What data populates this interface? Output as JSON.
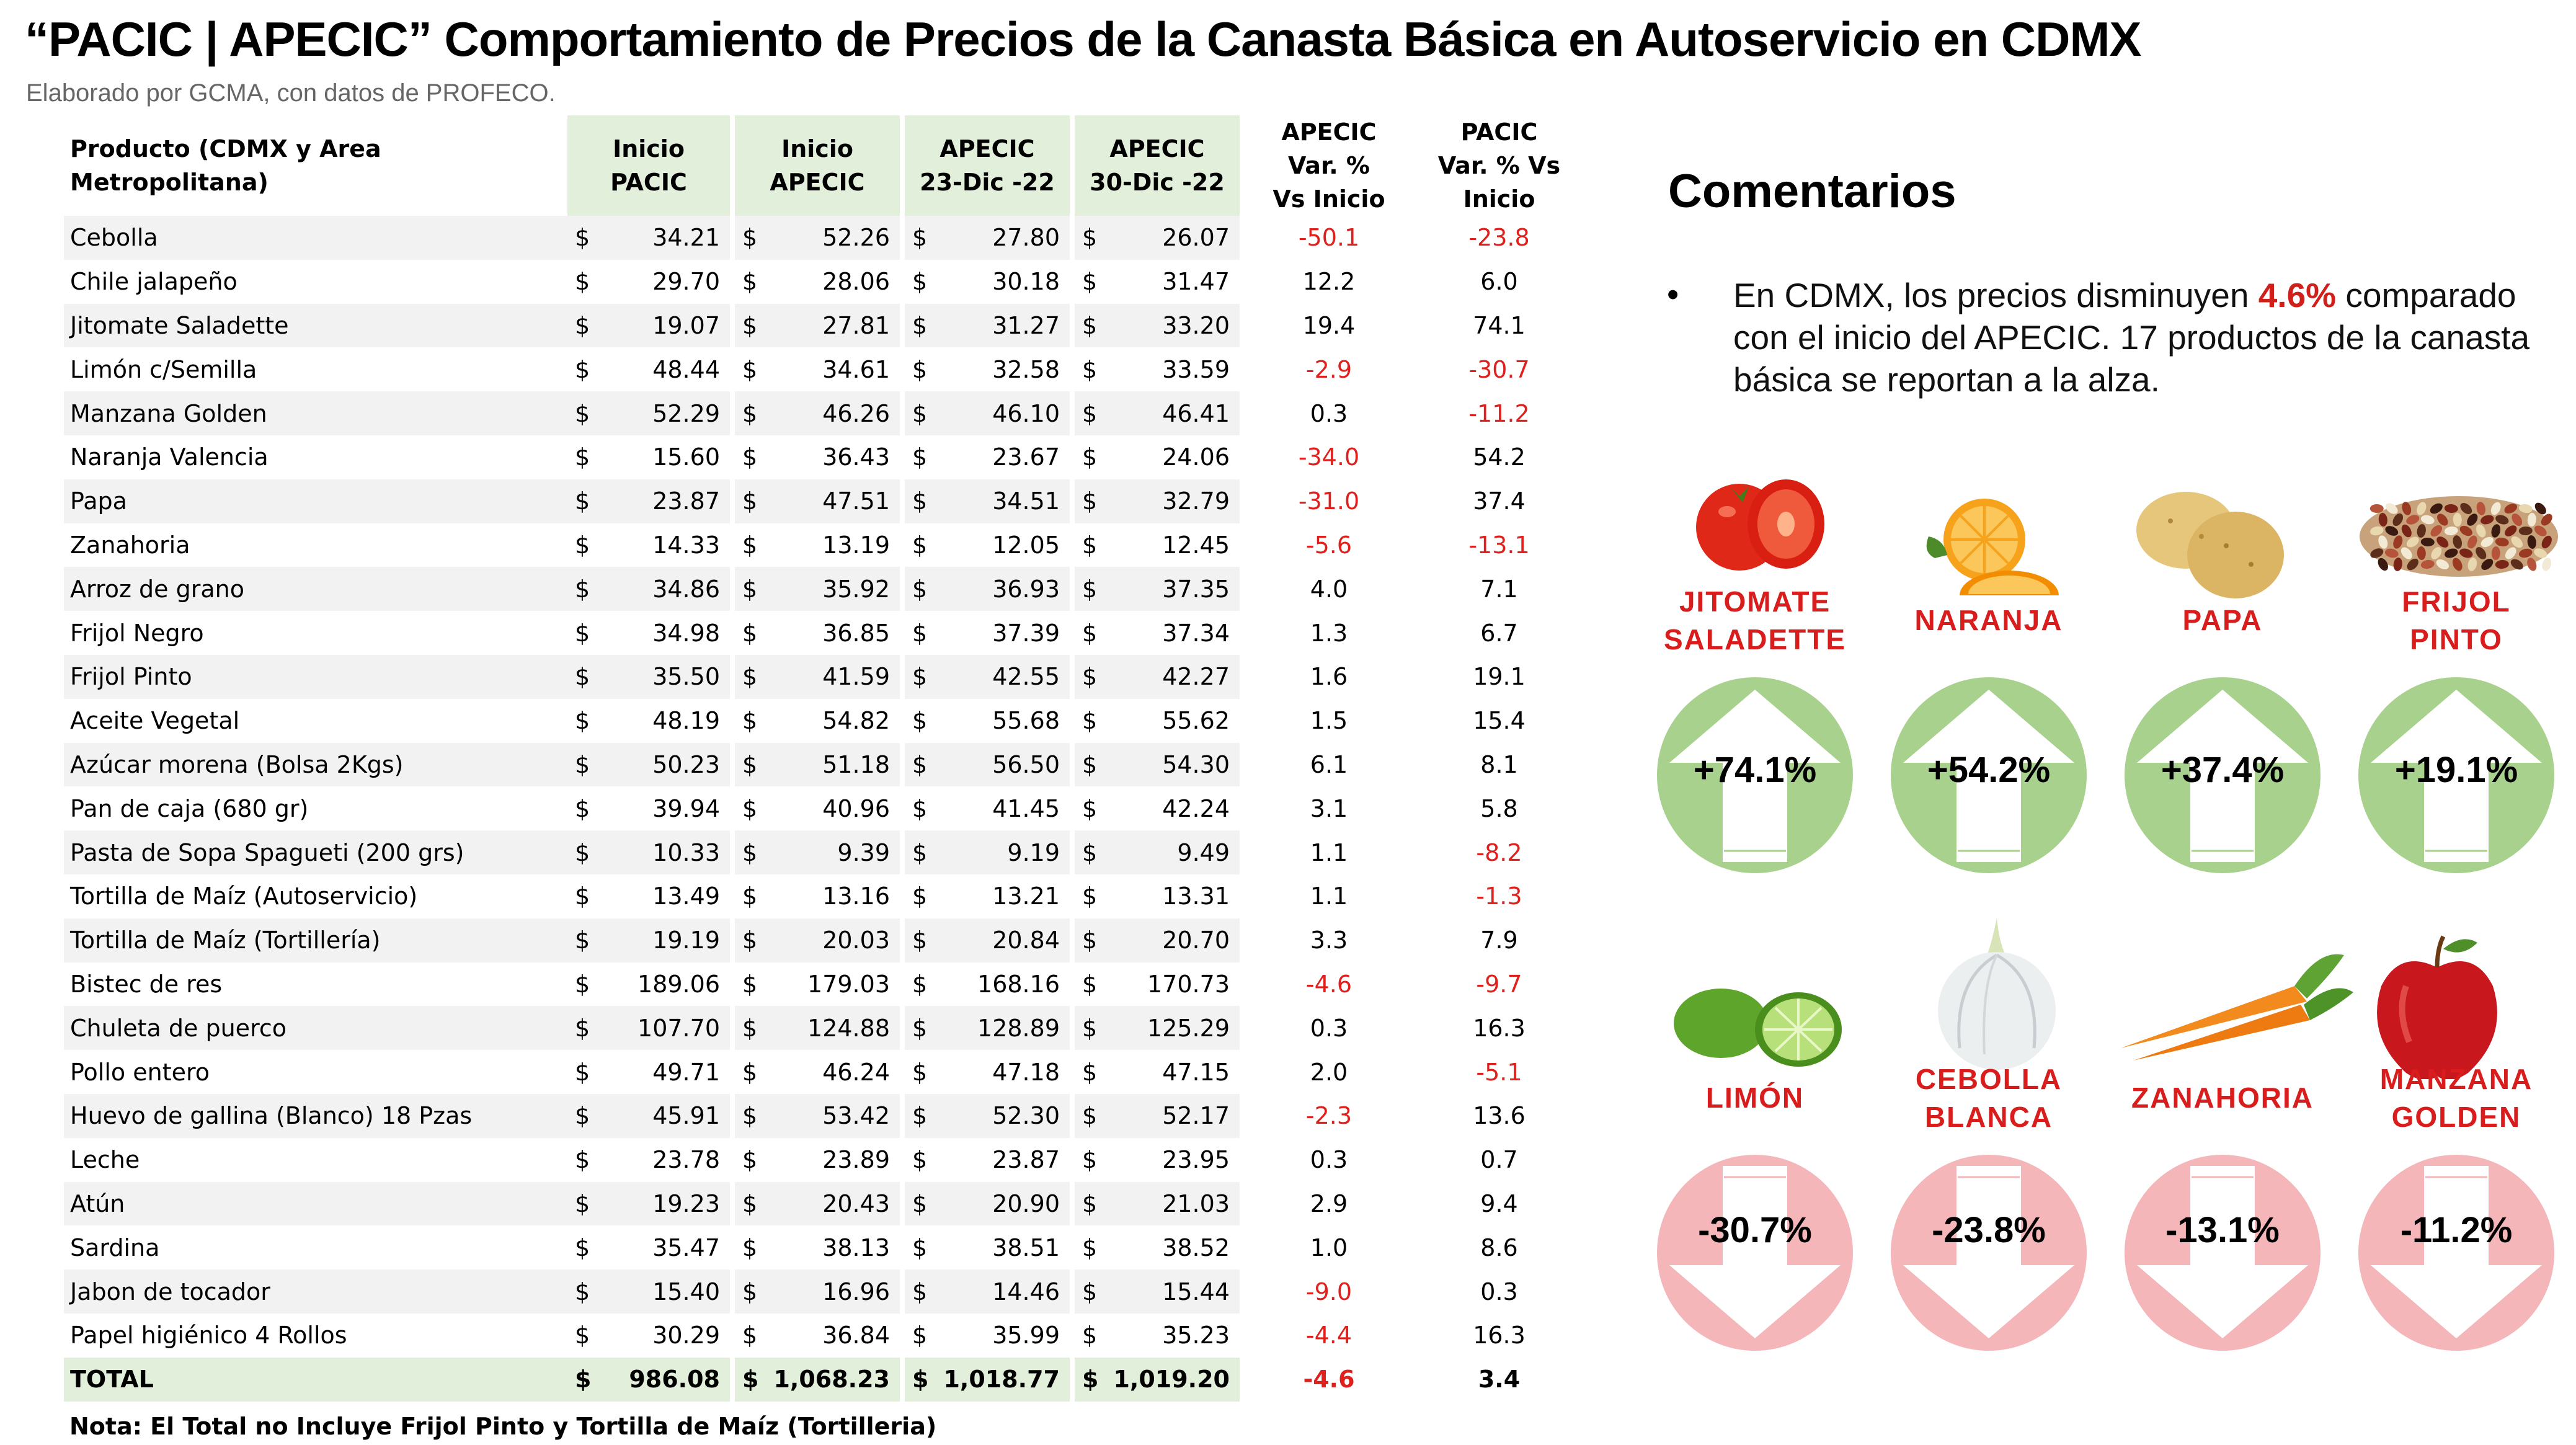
{
  "header": {
    "title": "“PACIC | APECIC” Comportamiento de Precios de la Canasta Básica en Autoservicio en CDMX",
    "subtitle": "Elaborado por GCMA, con datos de PROFECO."
  },
  "table": {
    "columns": {
      "producto": "Producto (CDMX y Area Metropolitana)",
      "inicio_pacic_1": "Inicio",
      "inicio_pacic_2": "PACIC",
      "inicio_apecic_1": "Inicio",
      "inicio_apecic_2": "APECIC",
      "apecic_23_1": "APECIC",
      "apecic_23_2": "23-Dic -22",
      "apecic_30_1": "APECIC",
      "apecic_30_2": "30-Dic -22",
      "var_apecic_1": "APECIC",
      "var_apecic_2": "Var. %",
      "var_apecic_3": "Vs  Inicio",
      "var_pacic_1": "PACIC",
      "var_pacic_2": "Var. % Vs",
      "var_pacic_3": "Inicio"
    },
    "currency_symbol": "$",
    "rows": [
      {
        "producto": "Cebolla",
        "inicio_pacic": "34.21",
        "inicio_apecic": "52.26",
        "apecic_23": "27.80",
        "apecic_30": "26.07",
        "var_apecic": "-50.1",
        "var_pacic": "-23.8"
      },
      {
        "producto": "Chile jalapeño",
        "inicio_pacic": "29.70",
        "inicio_apecic": "28.06",
        "apecic_23": "30.18",
        "apecic_30": "31.47",
        "var_apecic": "12.2",
        "var_pacic": "6.0"
      },
      {
        "producto": "Jitomate Saladette",
        "inicio_pacic": "19.07",
        "inicio_apecic": "27.81",
        "apecic_23": "31.27",
        "apecic_30": "33.20",
        "var_apecic": "19.4",
        "var_pacic": "74.1"
      },
      {
        "producto": "Limón c/Semilla",
        "inicio_pacic": "48.44",
        "inicio_apecic": "34.61",
        "apecic_23": "32.58",
        "apecic_30": "33.59",
        "var_apecic": "-2.9",
        "var_pacic": "-30.7"
      },
      {
        "producto": "Manzana Golden",
        "inicio_pacic": "52.29",
        "inicio_apecic": "46.26",
        "apecic_23": "46.10",
        "apecic_30": "46.41",
        "var_apecic": "0.3",
        "var_pacic": "-11.2"
      },
      {
        "producto": "Naranja Valencia",
        "inicio_pacic": "15.60",
        "inicio_apecic": "36.43",
        "apecic_23": "23.67",
        "apecic_30": "24.06",
        "var_apecic": "-34.0",
        "var_pacic": "54.2"
      },
      {
        "producto": "Papa",
        "inicio_pacic": "23.87",
        "inicio_apecic": "47.51",
        "apecic_23": "34.51",
        "apecic_30": "32.79",
        "var_apecic": "-31.0",
        "var_pacic": "37.4"
      },
      {
        "producto": "Zanahoria",
        "inicio_pacic": "14.33",
        "inicio_apecic": "13.19",
        "apecic_23": "12.05",
        "apecic_30": "12.45",
        "var_apecic": "-5.6",
        "var_pacic": "-13.1"
      },
      {
        "producto": "Arroz de grano",
        "inicio_pacic": "34.86",
        "inicio_apecic": "35.92",
        "apecic_23": "36.93",
        "apecic_30": "37.35",
        "var_apecic": "4.0",
        "var_pacic": "7.1"
      },
      {
        "producto": "Frijol Negro",
        "inicio_pacic": "34.98",
        "inicio_apecic": "36.85",
        "apecic_23": "37.39",
        "apecic_30": "37.34",
        "var_apecic": "1.3",
        "var_pacic": "6.7"
      },
      {
        "producto": "Frijol Pinto",
        "inicio_pacic": "35.50",
        "inicio_apecic": "41.59",
        "apecic_23": "42.55",
        "apecic_30": "42.27",
        "var_apecic": "1.6",
        "var_pacic": "19.1"
      },
      {
        "producto": "Aceite Vegetal",
        "inicio_pacic": "48.19",
        "inicio_apecic": "54.82",
        "apecic_23": "55.68",
        "apecic_30": "55.62",
        "var_apecic": "1.5",
        "var_pacic": "15.4"
      },
      {
        "producto": "Azúcar morena (Bolsa 2Kgs)",
        "inicio_pacic": "50.23",
        "inicio_apecic": "51.18",
        "apecic_23": "56.50",
        "apecic_30": "54.30",
        "var_apecic": "6.1",
        "var_pacic": "8.1"
      },
      {
        "producto": "Pan de caja (680 gr)",
        "inicio_pacic": "39.94",
        "inicio_apecic": "40.96",
        "apecic_23": "41.45",
        "apecic_30": "42.24",
        "var_apecic": "3.1",
        "var_pacic": "5.8"
      },
      {
        "producto": "Pasta de Sopa Spagueti (200 grs)",
        "inicio_pacic": "10.33",
        "inicio_apecic": "9.39",
        "apecic_23": "9.19",
        "apecic_30": "9.49",
        "var_apecic": "1.1",
        "var_pacic": "-8.2"
      },
      {
        "producto": "Tortilla de Maíz (Autoservicio)",
        "inicio_pacic": "13.49",
        "inicio_apecic": "13.16",
        "apecic_23": "13.21",
        "apecic_30": "13.31",
        "var_apecic": "1.1",
        "var_pacic": "-1.3"
      },
      {
        "producto": "Tortilla de Maíz (Tortillería)",
        "inicio_pacic": "19.19",
        "inicio_apecic": "20.03",
        "apecic_23": "20.84",
        "apecic_30": "20.70",
        "var_apecic": "3.3",
        "var_pacic": "7.9"
      },
      {
        "producto": "Bistec de res",
        "inicio_pacic": "189.06",
        "inicio_apecic": "179.03",
        "apecic_23": "168.16",
        "apecic_30": "170.73",
        "var_apecic": "-4.6",
        "var_pacic": "-9.7"
      },
      {
        "producto": "Chuleta de puerco",
        "inicio_pacic": "107.70",
        "inicio_apecic": "124.88",
        "apecic_23": "128.89",
        "apecic_30": "125.29",
        "var_apecic": "0.3",
        "var_pacic": "16.3"
      },
      {
        "producto": "Pollo entero",
        "inicio_pacic": "49.71",
        "inicio_apecic": "46.24",
        "apecic_23": "47.18",
        "apecic_30": "47.15",
        "var_apecic": "2.0",
        "var_pacic": "-5.1"
      },
      {
        "producto": "Huevo de gallina (Blanco) 18 Pzas",
        "inicio_pacic": "45.91",
        "inicio_apecic": "53.42",
        "apecic_23": "52.30",
        "apecic_30": "52.17",
        "var_apecic": "-2.3",
        "var_pacic": "13.6"
      },
      {
        "producto": "Leche",
        "inicio_pacic": "23.78",
        "inicio_apecic": "23.89",
        "apecic_23": "23.87",
        "apecic_30": "23.95",
        "var_apecic": "0.3",
        "var_pacic": "0.7"
      },
      {
        "producto": "Atún",
        "inicio_pacic": "19.23",
        "inicio_apecic": "20.43",
        "apecic_23": "20.90",
        "apecic_30": "21.03",
        "var_apecic": "2.9",
        "var_pacic": "9.4"
      },
      {
        "producto": "Sardina",
        "inicio_pacic": "35.47",
        "inicio_apecic": "38.13",
        "apecic_23": "38.51",
        "apecic_30": "38.52",
        "var_apecic": "1.0",
        "var_pacic": "8.6"
      },
      {
        "producto": "Jabon de tocador",
        "inicio_pacic": "15.40",
        "inicio_apecic": "16.96",
        "apecic_23": "14.46",
        "apecic_30": "15.44",
        "var_apecic": "-9.0",
        "var_pacic": "0.3"
      },
      {
        "producto": "Papel higiénico 4 Rollos",
        "inicio_pacic": "30.29",
        "inicio_apecic": "36.84",
        "apecic_23": "35.99",
        "apecic_30": "35.23",
        "var_apecic": "-4.4",
        "var_pacic": "16.3"
      }
    ],
    "total": {
      "producto": "TOTAL",
      "inicio_pacic": "986.08",
      "inicio_apecic": "1,068.23",
      "apecic_23": "1,018.77",
      "apecic_30": "1,019.20",
      "var_apecic": "-4.6",
      "var_pacic": "3.4"
    },
    "note": "Nota: El Total no Incluye Frijol Pinto y Tortilla de Maíz (Tortilleria)",
    "colors": {
      "header_green": "#e2efda",
      "row_grey": "#f2f2f2",
      "negative": "#e0201c"
    }
  },
  "comments": {
    "heading": "Comentarios",
    "bullet": "•",
    "text_before": "En CDMX, los precios disminuyen ",
    "highlight": "4.6%",
    "text_after": " comparado con el inicio del APECIC. 17 productos de la canasta básica se reportan a la alza."
  },
  "cards_up": [
    {
      "label": "JITOMATE SALADETTE",
      "value": "+74.1%",
      "icon": "tomato-icon"
    },
    {
      "label": "NARANJA",
      "value": "+54.2%",
      "icon": "orange-icon"
    },
    {
      "label": "PAPA",
      "value": "+37.4%",
      "icon": "potato-icon"
    },
    {
      "label": "FRIJOL PINTO",
      "value": "+19.1%",
      "icon": "beans-icon"
    }
  ],
  "cards_down": [
    {
      "label": "LIMÓN",
      "value": "-30.7%",
      "icon": "lime-icon"
    },
    {
      "label": "CEBOLLA BLANCA",
      "value": "-23.8%",
      "icon": "onion-icon"
    },
    {
      "label": "ZANAHORIA",
      "value": "-13.1%",
      "icon": "carrot-icon"
    },
    {
      "label": "MANZANA GOLDEN",
      "value": "-11.2%",
      "icon": "apple-icon"
    }
  ],
  "card_colors": {
    "up": "#a9d18e",
    "down": "#f4b6b8",
    "label": "#d91c1c"
  }
}
